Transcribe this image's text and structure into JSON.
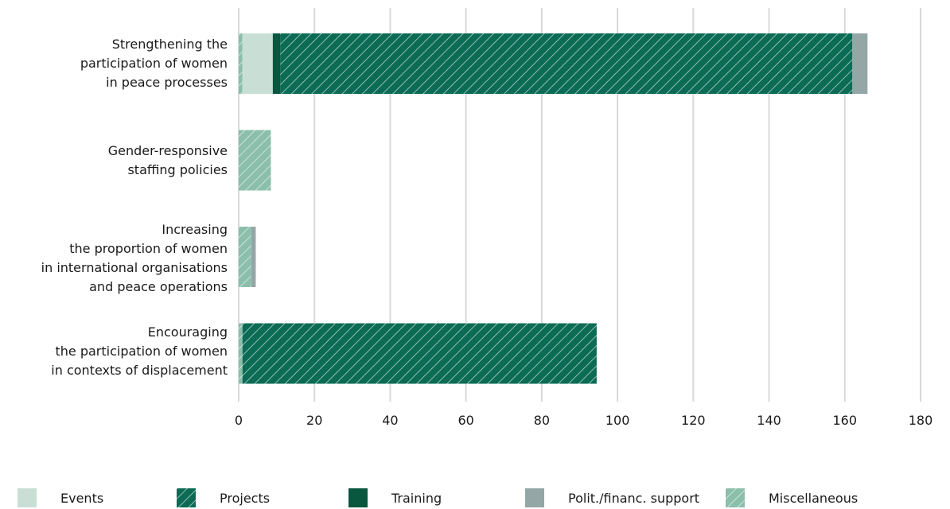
{
  "chart_data": {
    "type": "bar",
    "orientation": "horizontal",
    "stacked": true,
    "categories": [
      "Strengthening the\nparticipation of women\nin peace processes",
      "Gender-responsive\nstaffing policies",
      "Increasing\nthe proportion of women\nin international organisations\nand peace operations",
      "Encouraging\nthe participation of women\nin contexts of displacement"
    ],
    "series": [
      {
        "name": "Miscellaneous",
        "values": [
          1,
          8.5,
          3.3,
          1
        ]
      },
      {
        "name": "Events",
        "values": [
          8,
          0,
          0,
          0
        ]
      },
      {
        "name": "Training",
        "values": [
          2,
          0,
          0,
          0
        ]
      },
      {
        "name": "Projects",
        "values": [
          151,
          0,
          0,
          93.5
        ]
      },
      {
        "name": "Polit./financ. support",
        "values": [
          4,
          0,
          1.2,
          0
        ]
      }
    ],
    "xlim": [
      0,
      180
    ],
    "xticks": [
      "0",
      "20",
      "40",
      "60",
      "80",
      "100",
      "120",
      "140",
      "160",
      "180"
    ],
    "grid": "vertical",
    "legend_position": "bottom",
    "colors": {
      "Events": "#c9dfd6",
      "Projects": "#0b6b55",
      "Training": "#0a5740",
      "Polit./financ. support": "#95a6a6",
      "Miscellaneous": "#8bbfac",
      "grid": "#d9d9d9"
    },
    "hatched": [
      "Projects",
      "Miscellaneous"
    ]
  },
  "legend": [
    {
      "name": "Events",
      "label": "Events"
    },
    {
      "name": "Projects",
      "label": "Projects"
    },
    {
      "name": "Training",
      "label": "Training"
    },
    {
      "name": "Polit./financ. support",
      "label": "Polit./financ. support"
    },
    {
      "name": "Miscellaneous",
      "label": "Miscellaneous"
    }
  ]
}
